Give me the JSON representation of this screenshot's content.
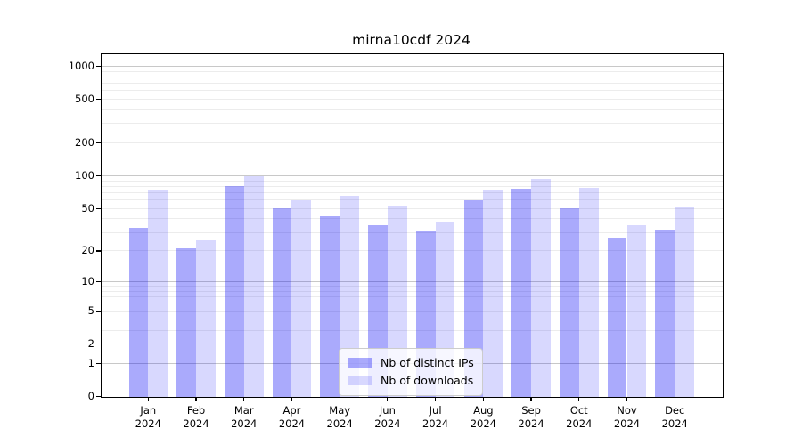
{
  "title": "mirna10cdf 2024",
  "chart_data": {
    "type": "bar",
    "title": "mirna10cdf 2024",
    "categories": [
      "Jan",
      "Feb",
      "Mar",
      "Apr",
      "May",
      "Jun",
      "Jul",
      "Aug",
      "Sep",
      "Oct",
      "Nov",
      "Dec"
    ],
    "year": "2024",
    "series": [
      {
        "name": "Nb of distinct IPs",
        "color": "#aaaaf8",
        "values": [
          33,
          21,
          80,
          50,
          42,
          35,
          31,
          60,
          76,
          50,
          27,
          32
        ]
      },
      {
        "name": "Nb of downloads",
        "color": "#d8d8fa",
        "values": [
          74,
          25,
          100,
          60,
          65,
          52,
          38,
          74,
          93,
          78,
          35,
          51
        ]
      }
    ],
    "y_ticks": [
      "1000",
      "500",
      "200",
      "100",
      "50",
      "20",
      "10",
      "5",
      "2",
      "1",
      "0"
    ],
    "scale": "log10(1+v)",
    "ylim": [
      0,
      1270
    ],
    "grid": "horizontal, minor log lines",
    "legend_position": "lower center",
    "grid_minor_color": "#ececec",
    "grid_major_color": "#c8c8c8",
    "frame_color": "#000000"
  }
}
